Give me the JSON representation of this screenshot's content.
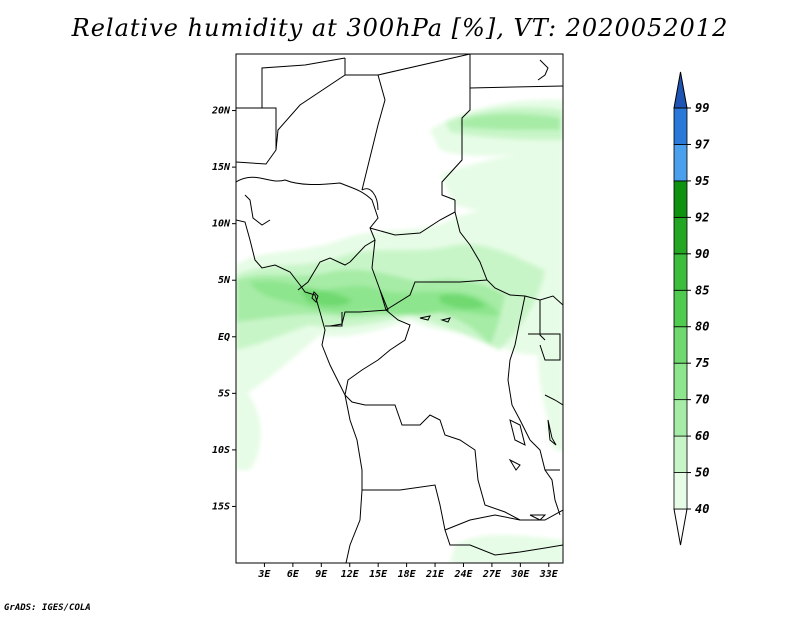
{
  "title": "Relative humidity at 300hPa [%], VT: 2020052012",
  "footer": "GrADS: IGES/COLA",
  "colors": {
    "c40": "#e6fce6",
    "c50": "#c8f5c8",
    "c60": "#a6eba6",
    "c70": "#8de58d",
    "c75": "#6fd96f",
    "c80": "#4fcc4f",
    "c85": "#3cbe3c",
    "c90": "#23a723",
    "c92": "#0f920f",
    "c95": "#4aa0ec",
    "c97": "#2a78d8",
    "c99": "#1e55b4",
    "border": "#000000",
    "land": "#ffffff"
  },
  "map": {
    "lon_range": [
      0,
      34.5
    ],
    "lat_range": [
      -20,
      25
    ],
    "lat_ticks": [
      {
        "lat": 20,
        "label": "20N"
      },
      {
        "lat": 15,
        "label": "15N"
      },
      {
        "lat": 10,
        "label": "10N"
      },
      {
        "lat": 5,
        "label": "5N"
      },
      {
        "lat": 0,
        "label": "EQ"
      },
      {
        "lat": -5,
        "label": "5S"
      },
      {
        "lat": -10,
        "label": "10S"
      },
      {
        "lat": -15,
        "label": "15S"
      }
    ],
    "lon_ticks": [
      {
        "lon": 3,
        "label": "3E"
      },
      {
        "lon": 6,
        "label": "6E"
      },
      {
        "lon": 9,
        "label": "9E"
      },
      {
        "lon": 12,
        "label": "12E"
      },
      {
        "lon": 15,
        "label": "15E"
      },
      {
        "lon": 18,
        "label": "18E"
      },
      {
        "lon": 21,
        "label": "21E"
      },
      {
        "lon": 24,
        "label": "24E"
      },
      {
        "lon": 27,
        "label": "27E"
      },
      {
        "lon": 30,
        "label": "30E"
      },
      {
        "lon": 33,
        "label": "33E"
      }
    ]
  },
  "colorbar": {
    "levels": [
      "40",
      "50",
      "60",
      "70",
      "75",
      "80",
      "85",
      "90",
      "92",
      "95",
      "97",
      "99"
    ],
    "segment_colors": [
      "#ffffff",
      "#e6fce6",
      "#c8f5c8",
      "#a6eba6",
      "#8de58d",
      "#6fd96f",
      "#4fcc4f",
      "#3cbe3c",
      "#23a723",
      "#0f920f",
      "#4aa0ec",
      "#2a78d8",
      "#1e55b4"
    ]
  }
}
